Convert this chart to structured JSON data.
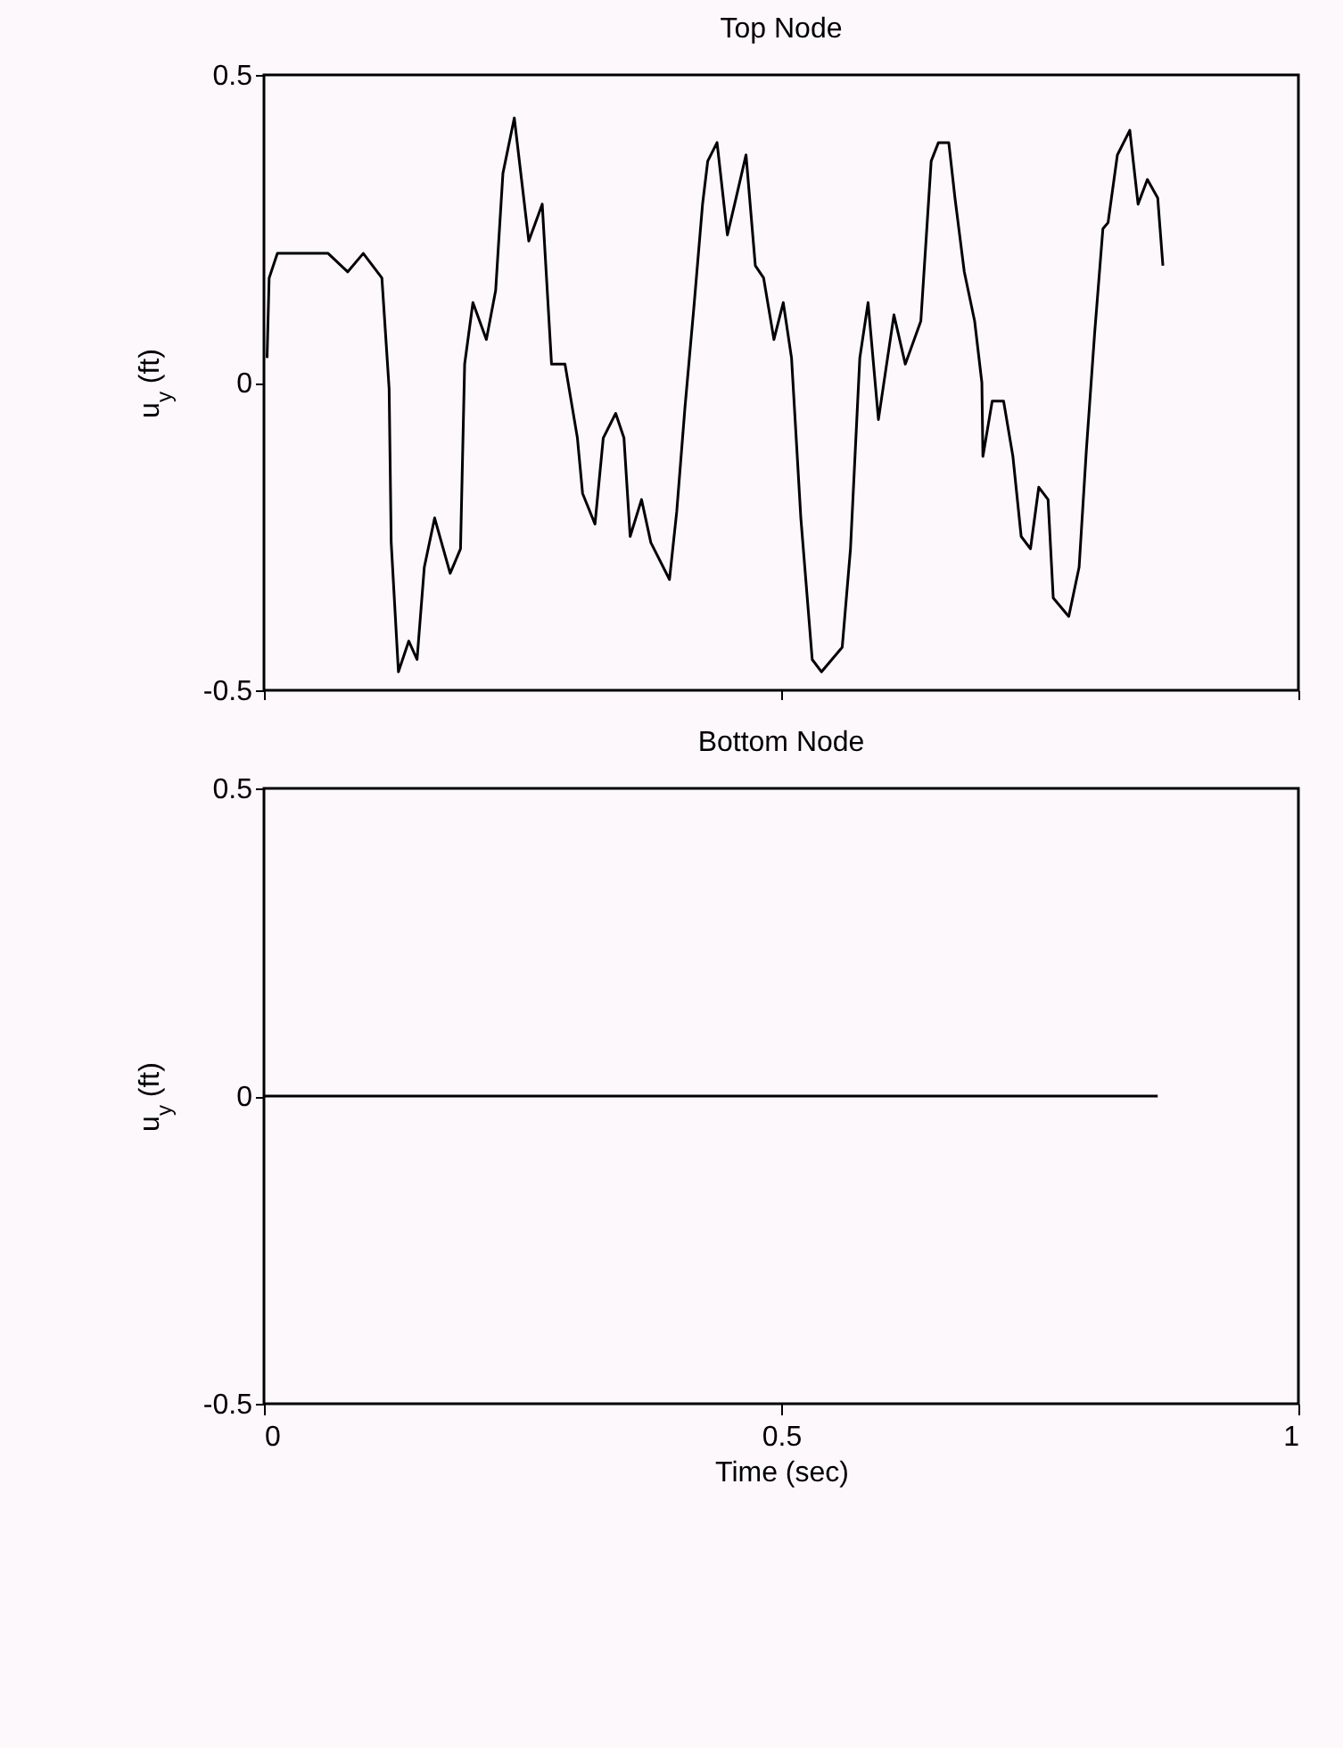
{
  "chart_data": [
    {
      "type": "line",
      "title": "Top Node",
      "ylabel": "u$_{y}$ (ft)",
      "color": "#000000",
      "xlim": [
        0,
        1
      ],
      "xticks": [
        0,
        0.5,
        1
      ],
      "ylim": [
        -0.5,
        0.5
      ],
      "yticks": [
        -0.5,
        0,
        0.5
      ],
      "tick_labels": "y",
      "x": [
        0.003,
        0.005,
        0.013,
        0.062,
        0.081,
        0.096,
        0.114,
        0.121,
        0.123,
        0.13,
        0.14,
        0.148,
        0.155,
        0.165,
        0.18,
        0.19,
        0.194,
        0.202,
        0.215,
        0.224,
        0.231,
        0.242,
        0.249,
        0.256,
        0.269,
        0.278,
        0.291,
        0.303,
        0.308,
        0.32,
        0.328,
        0.34,
        0.348,
        0.354,
        0.365,
        0.374,
        0.392,
        0.399,
        0.407,
        0.416,
        0.424,
        0.429,
        0.438,
        0.448,
        0.455,
        0.466,
        0.475,
        0.483,
        0.493,
        0.502,
        0.51,
        0.519,
        0.53,
        0.539,
        0.559,
        0.567,
        0.576,
        0.584,
        0.594,
        0.609,
        0.62,
        0.635,
        0.645,
        0.652,
        0.662,
        0.668,
        0.677,
        0.687,
        0.694,
        0.695,
        0.704,
        0.715,
        0.724,
        0.732,
        0.741,
        0.749,
        0.758,
        0.763,
        0.778,
        0.788,
        0.795,
        0.803,
        0.811,
        0.816,
        0.825,
        0.837,
        0.845,
        0.854,
        0.864,
        0.869
      ],
      "values": [
        0.04,
        0.17,
        0.21,
        0.21,
        0.18,
        0.21,
        0.17,
        -0.01,
        -0.26,
        -0.47,
        -0.42,
        -0.45,
        -0.3,
        -0.22,
        -0.31,
        -0.27,
        0.03,
        0.13,
        0.07,
        0.15,
        0.34,
        0.43,
        0.33,
        0.23,
        0.29,
        0.03,
        0.03,
        -0.09,
        -0.18,
        -0.23,
        -0.09,
        -0.05,
        -0.09,
        -0.25,
        -0.19,
        -0.26,
        -0.32,
        -0.21,
        -0.04,
        0.13,
        0.29,
        0.36,
        0.39,
        0.24,
        0.29,
        0.37,
        0.19,
        0.17,
        0.07,
        0.13,
        0.04,
        -0.22,
        -0.45,
        -0.47,
        -0.43,
        -0.27,
        0.04,
        0.13,
        -0.06,
        0.11,
        0.03,
        0.1,
        0.36,
        0.39,
        0.39,
        0.3,
        0.18,
        0.1,
        0,
        -0.12,
        -0.03,
        -0.03,
        -0.12,
        -0.25,
        -0.27,
        -0.17,
        -0.19,
        -0.35,
        -0.38,
        -0.3,
        -0.11,
        0.08,
        0.25,
        0.26,
        0.37,
        0.41,
        0.29,
        0.33,
        0.3,
        0.19
      ]
    },
    {
      "type": "line",
      "title": "Bottom Node",
      "xlabel": "Time (sec)",
      "ylabel": "u$_{y}$ (ft)",
      "color": "#000000",
      "xlim": [
        0,
        1
      ],
      "xticks": [
        0,
        0.5,
        1
      ],
      "ylim": [
        -0.5,
        0.5
      ],
      "yticks": [
        -0.5,
        0,
        0.5
      ],
      "x": [
        0,
        0.864
      ],
      "values": [
        0,
        0
      ]
    }
  ]
}
